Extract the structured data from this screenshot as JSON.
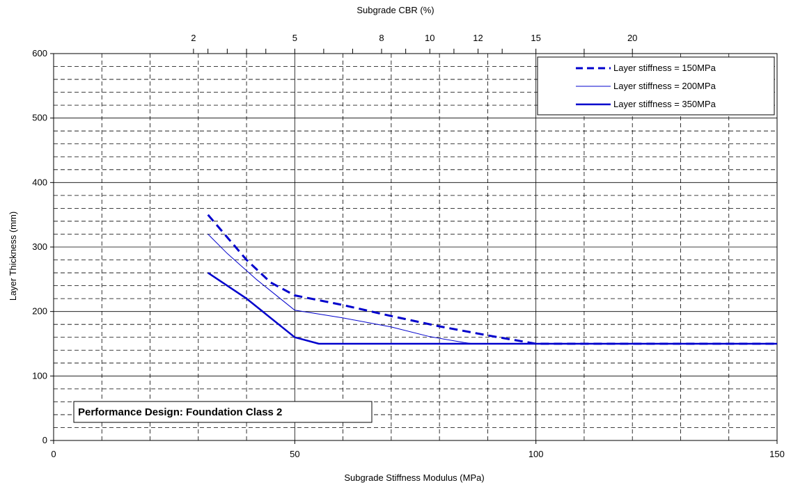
{
  "chart_data": {
    "type": "line",
    "title": "",
    "xlabel": "Subgrade Stiffness Modulus (MPa)",
    "ylabel": "Layer Thickness (mm)",
    "x2label": "Subgrade CBR (%)",
    "xlim": [
      0,
      150
    ],
    "ylim": [
      0,
      600
    ],
    "x_ticks": [
      0,
      50,
      100,
      150
    ],
    "y_ticks": [
      0,
      100,
      200,
      300,
      400,
      500,
      600
    ],
    "x2_ticks": [
      {
        "label": "2",
        "x": 29
      },
      {
        "label": "5",
        "x": 50
      },
      {
        "label": "8",
        "x": 68
      },
      {
        "label": "10",
        "x": 78
      },
      {
        "label": "12",
        "x": 88
      },
      {
        "label": "15",
        "x": 100
      },
      {
        "label": "20",
        "x": 120
      }
    ],
    "grid": true,
    "legend_position": "top-right",
    "annotation": "Performance Design: Foundation Class 2",
    "series": [
      {
        "name": "Layer stiffness = 150MPa",
        "style": "dashed",
        "color": "#0000CC",
        "points": [
          [
            32,
            350
          ],
          [
            36,
            315
          ],
          [
            40,
            280
          ],
          [
            45,
            245
          ],
          [
            50,
            225
          ],
          [
            60,
            210
          ],
          [
            70,
            193
          ],
          [
            80,
            177
          ],
          [
            90,
            163
          ],
          [
            100,
            150
          ],
          [
            150,
            150
          ]
        ]
      },
      {
        "name": "Layer stiffness = 200MPa",
        "style": "thin",
        "color": "#0000CC",
        "points": [
          [
            32,
            320
          ],
          [
            36,
            290
          ],
          [
            42,
            250
          ],
          [
            50,
            202
          ],
          [
            60,
            190
          ],
          [
            70,
            176
          ],
          [
            78,
            161
          ],
          [
            85,
            152
          ],
          [
            87,
            150
          ],
          [
            150,
            150
          ]
        ]
      },
      {
        "name": "Layer stiffness = 350MPa",
        "style": "solid",
        "color": "#0000CC",
        "points": [
          [
            32,
            260
          ],
          [
            40,
            220
          ],
          [
            50,
            160
          ],
          [
            55,
            150
          ],
          [
            150,
            150
          ]
        ]
      }
    ]
  }
}
